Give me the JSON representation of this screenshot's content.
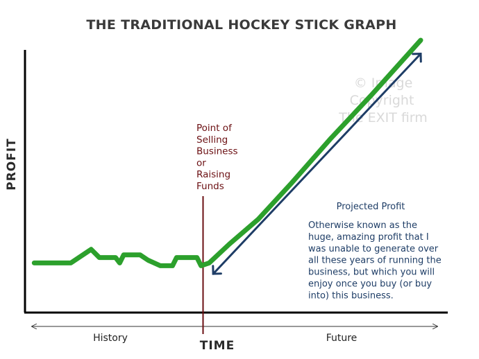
{
  "chart_data": {
    "type": "line",
    "title": "THE TRADITIONAL HOCKEY STICK GRAPH",
    "xlabel": "TIME",
    "ylabel": "PROFIT",
    "x_periods": [
      "History",
      "Future"
    ],
    "grid": false,
    "legend": "none",
    "series": [
      {
        "color": "#2ca02c",
        "points": [
          [
            5,
            18
          ],
          [
            14,
            18
          ],
          [
            19,
            23
          ],
          [
            21,
            20
          ],
          [
            25,
            20
          ],
          [
            26,
            18
          ],
          [
            27,
            21
          ],
          [
            31,
            21
          ],
          [
            33,
            19
          ],
          [
            36,
            17
          ],
          [
            39,
            17
          ],
          [
            40,
            20
          ],
          [
            45,
            20
          ],
          [
            46,
            17
          ],
          [
            48,
            18
          ],
          [
            53,
            25
          ],
          [
            60,
            34
          ],
          [
            68,
            47
          ],
          [
            78,
            64
          ],
          [
            88,
            80
          ],
          [
            100,
            100
          ]
        ]
      }
    ],
    "projection_arrow": {
      "color": "#1e3d66",
      "from": [
        49,
        14
      ],
      "to": [
        100,
        95
      ]
    },
    "annotations": {
      "event": {
        "x": 46.5,
        "lines": [
          "Point of",
          "Selling",
          "Business",
          "or",
          "Raising",
          "Funds"
        ],
        "color": "#6b0f12"
      },
      "projected_title": "Projected Profit",
      "projected_desc": [
        "Otherwise known as the",
        "huge, amazing profit that I",
        "was unable to generate over",
        "all these years of running the",
        "business, but which you will",
        "enjoy once you buy (or buy",
        "into) this business."
      ],
      "watermark": [
        "© Image",
        "Copyright",
        "The EXIT firm"
      ]
    }
  }
}
